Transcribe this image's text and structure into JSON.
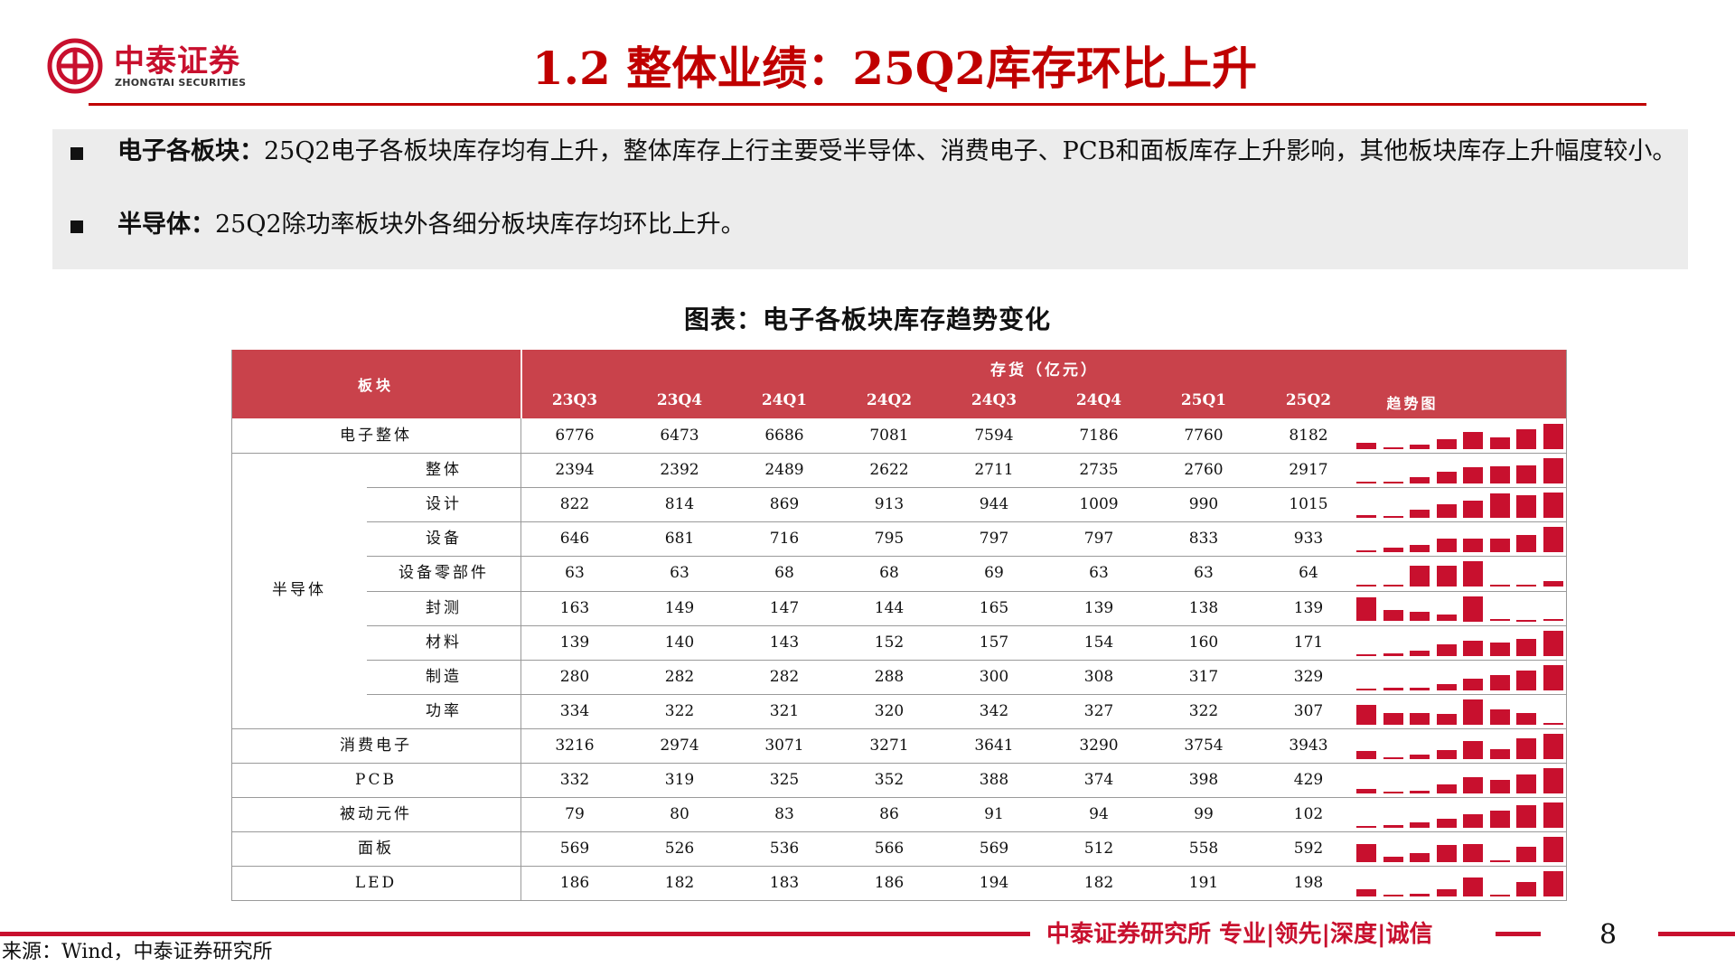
{
  "header": {
    "logo_cn": "中泰证券",
    "logo_en": "ZHONGTAI SECURITIES",
    "title": "1.2 整体业绩：25Q2库存环比上升"
  },
  "summary": {
    "bullets": [
      {
        "label": "电子各板块：",
        "text": "25Q2电子各板块库存均有上升，整体库存上行主要受半导体、消费电子、PCB和面板库存上升影响，其他板块库存上升幅度较小。"
      },
      {
        "label": "半导体：",
        "text": "25Q2除功率板块外各细分板块库存均环比上升。"
      }
    ]
  },
  "table": {
    "caption": "图表：电子各板块库存趋势变化",
    "header_block": "板块",
    "header_group": "存货（亿元）",
    "quarters": [
      "23Q3",
      "23Q4",
      "24Q1",
      "24Q2",
      "24Q3",
      "24Q4",
      "25Q1",
      "25Q2"
    ],
    "header_trend": "趋势图",
    "group_semiconductor": "半导体",
    "rows": [
      {
        "name": "电子整体",
        "level": "top",
        "values": [
          "6776",
          "6473",
          "6686",
          "7081",
          "7594",
          "7186",
          "7760",
          "8182"
        ]
      },
      {
        "name": "整体",
        "level": "sub",
        "values": [
          "2394",
          "2392",
          "2489",
          "2622",
          "2711",
          "2735",
          "2760",
          "2917"
        ]
      },
      {
        "name": "设计",
        "level": "sub",
        "values": [
          "822",
          "814",
          "869",
          "913",
          "944",
          "1009",
          "990",
          "1015"
        ]
      },
      {
        "name": "设备",
        "level": "sub",
        "values": [
          "646",
          "681",
          "716",
          "795",
          "797",
          "797",
          "833",
          "933"
        ]
      },
      {
        "name": "设备零部件",
        "level": "sub",
        "values": [
          "63",
          "63",
          "68",
          "68",
          "69",
          "63",
          "63",
          "64"
        ]
      },
      {
        "name": "封测",
        "level": "sub",
        "values": [
          "163",
          "149",
          "147",
          "144",
          "165",
          "139",
          "138",
          "139"
        ]
      },
      {
        "name": "材料",
        "level": "sub",
        "values": [
          "139",
          "140",
          "143",
          "152",
          "157",
          "154",
          "160",
          "171"
        ]
      },
      {
        "name": "制造",
        "level": "sub",
        "values": [
          "280",
          "282",
          "282",
          "288",
          "300",
          "308",
          "317",
          "329"
        ]
      },
      {
        "name": "功率",
        "level": "sub",
        "values": [
          "334",
          "322",
          "321",
          "320",
          "342",
          "327",
          "322",
          "307"
        ]
      },
      {
        "name": "消费电子",
        "level": "top",
        "values": [
          "3216",
          "2974",
          "3071",
          "3271",
          "3641",
          "3290",
          "3754",
          "3943"
        ]
      },
      {
        "name": "PCB",
        "level": "top",
        "values": [
          "332",
          "319",
          "325",
          "352",
          "388",
          "374",
          "398",
          "429"
        ]
      },
      {
        "name": "被动元件",
        "level": "top",
        "values": [
          "79",
          "80",
          "83",
          "86",
          "91",
          "94",
          "99",
          "102"
        ]
      },
      {
        "name": "面板",
        "level": "top",
        "values": [
          "569",
          "526",
          "536",
          "566",
          "569",
          "512",
          "558",
          "592"
        ]
      },
      {
        "name": "LED",
        "level": "top",
        "values": [
          "186",
          "182",
          "183",
          "186",
          "194",
          "182",
          "191",
          "198"
        ]
      }
    ]
  },
  "footer": {
    "source": "来源：Wind，中泰证券研究所",
    "tagline": "中泰证券研究所 专业|领先|深度|诚信",
    "page_number": "8"
  },
  "colors": {
    "brand_red": "#c8102e",
    "title_red": "#c00000",
    "header_fill": "#c9424b",
    "summary_bg": "#ececec"
  }
}
